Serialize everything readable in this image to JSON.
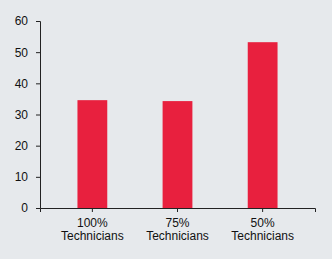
{
  "chart_data": {
    "type": "bar",
    "categories": [
      "100% Technicians",
      "75% Technicians",
      "50% Technicians"
    ],
    "values": [
      34.6,
      34.3,
      53.2
    ],
    "color": "#e8203e",
    "ylim": [
      0,
      60
    ],
    "yticks": [
      0,
      10,
      20,
      30,
      40,
      50,
      60
    ],
    "grid": false
  }
}
